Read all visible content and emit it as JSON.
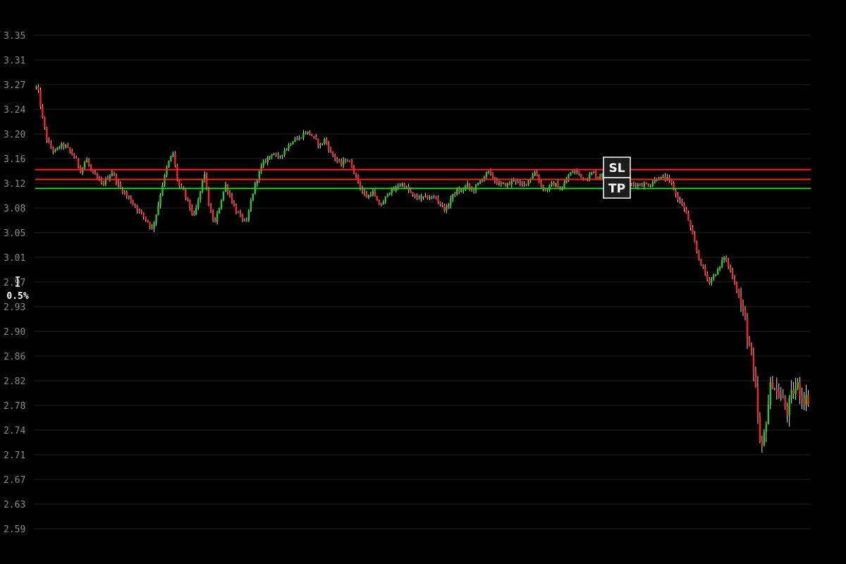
{
  "chart_data": {
    "type": "candlestick",
    "title": "",
    "xlabel": "",
    "ylabel": "",
    "ylim": [
      2.57,
      3.37
    ],
    "yticks": [
      "3.35",
      "3.31",
      "3.27",
      "3.24",
      "3.20",
      "3.16",
      "3.12",
      "3.08",
      "3.05",
      "3.01",
      "2.97",
      "2.93",
      "2.90",
      "2.86",
      "2.82",
      "2.78",
      "2.74",
      "2.71",
      "2.67",
      "2.63",
      "2.59"
    ],
    "price_path": [
      [
        0,
        3.27
      ],
      [
        1,
        3.26
      ],
      [
        2,
        3.23
      ],
      [
        3,
        3.21
      ],
      [
        4,
        3.19
      ],
      [
        5,
        3.18
      ],
      [
        7,
        3.17
      ],
      [
        9,
        3.18
      ],
      [
        11,
        3.18
      ],
      [
        13,
        3.17
      ],
      [
        15,
        3.16
      ],
      [
        17,
        3.14
      ],
      [
        19,
        3.16
      ],
      [
        21,
        3.14
      ],
      [
        23,
        3.13
      ],
      [
        25,
        3.12
      ],
      [
        27,
        3.13
      ],
      [
        29,
        3.14
      ],
      [
        31,
        3.12
      ],
      [
        33,
        3.11
      ],
      [
        35,
        3.1
      ],
      [
        37,
        3.09
      ],
      [
        39,
        3.08
      ],
      [
        41,
        3.07
      ],
      [
        43,
        3.06
      ],
      [
        44,
        3.05
      ],
      [
        46,
        3.08
      ],
      [
        48,
        3.12
      ],
      [
        50,
        3.15
      ],
      [
        52,
        3.17
      ],
      [
        54,
        3.12
      ],
      [
        56,
        3.11
      ],
      [
        58,
        3.09
      ],
      [
        60,
        3.07
      ],
      [
        62,
        3.1
      ],
      [
        64,
        3.14
      ],
      [
        66,
        3.08
      ],
      [
        68,
        3.06
      ],
      [
        70,
        3.09
      ],
      [
        72,
        3.12
      ],
      [
        74,
        3.1
      ],
      [
        76,
        3.08
      ],
      [
        78,
        3.07
      ],
      [
        80,
        3.06
      ],
      [
        82,
        3.1
      ],
      [
        84,
        3.13
      ],
      [
        86,
        3.15
      ],
      [
        88,
        3.16
      ],
      [
        90,
        3.17
      ],
      [
        92,
        3.16
      ],
      [
        94,
        3.17
      ],
      [
        96,
        3.18
      ],
      [
        98,
        3.19
      ],
      [
        100,
        3.19
      ],
      [
        102,
        3.2
      ],
      [
        104,
        3.2
      ],
      [
        106,
        3.19
      ],
      [
        108,
        3.18
      ],
      [
        110,
        3.19
      ],
      [
        112,
        3.17
      ],
      [
        114,
        3.16
      ],
      [
        116,
        3.15
      ],
      [
        118,
        3.16
      ],
      [
        120,
        3.15
      ],
      [
        122,
        3.13
      ],
      [
        124,
        3.11
      ],
      [
        126,
        3.1
      ],
      [
        128,
        3.11
      ],
      [
        130,
        3.09
      ],
      [
        132,
        3.09
      ],
      [
        134,
        3.11
      ],
      [
        136,
        3.11
      ],
      [
        138,
        3.12
      ],
      [
        140,
        3.12
      ],
      [
        142,
        3.11
      ],
      [
        144,
        3.1
      ],
      [
        146,
        3.1
      ],
      [
        148,
        3.1
      ],
      [
        150,
        3.1
      ],
      [
        152,
        3.1
      ],
      [
        154,
        3.09
      ],
      [
        156,
        3.08
      ],
      [
        158,
        3.1
      ],
      [
        160,
        3.11
      ],
      [
        162,
        3.11
      ],
      [
        164,
        3.12
      ],
      [
        166,
        3.11
      ],
      [
        168,
        3.12
      ],
      [
        170,
        3.13
      ],
      [
        172,
        3.14
      ],
      [
        174,
        3.13
      ],
      [
        176,
        3.12
      ],
      [
        178,
        3.12
      ],
      [
        180,
        3.12
      ],
      [
        182,
        3.13
      ],
      [
        184,
        3.12
      ],
      [
        186,
        3.12
      ],
      [
        188,
        3.13
      ],
      [
        190,
        3.14
      ],
      [
        192,
        3.12
      ],
      [
        194,
        3.11
      ],
      [
        196,
        3.12
      ],
      [
        198,
        3.12
      ],
      [
        200,
        3.11
      ],
      [
        202,
        3.13
      ],
      [
        204,
        3.14
      ],
      [
        206,
        3.14
      ],
      [
        208,
        3.13
      ],
      [
        210,
        3.13
      ],
      [
        212,
        3.14
      ],
      [
        214,
        3.13
      ],
      [
        216,
        3.14
      ],
      [
        218,
        3.13
      ],
      [
        220,
        3.13
      ],
      [
        222,
        3.12
      ],
      [
        224,
        3.12
      ],
      [
        226,
        3.12
      ],
      [
        228,
        3.12
      ],
      [
        230,
        3.12
      ],
      [
        232,
        3.12
      ],
      [
        234,
        3.12
      ],
      [
        236,
        3.13
      ],
      [
        238,
        3.13
      ],
      [
        240,
        3.13
      ],
      [
        242,
        3.12
      ],
      [
        244,
        3.1
      ],
      [
        246,
        3.09
      ],
      [
        248,
        3.07
      ],
      [
        250,
        3.04
      ],
      [
        252,
        3.01
      ],
      [
        254,
        2.99
      ],
      [
        256,
        2.97
      ],
      [
        258,
        2.98
      ],
      [
        260,
        2.99
      ],
      [
        262,
        3.01
      ],
      [
        264,
        2.99
      ],
      [
        266,
        2.97
      ],
      [
        268,
        2.94
      ],
      [
        270,
        2.91
      ],
      [
        272,
        2.86
      ],
      [
        274,
        2.8
      ],
      [
        276,
        2.7
      ],
      [
        278,
        2.76
      ],
      [
        280,
        2.82
      ],
      [
        282,
        2.8
      ],
      [
        284,
        2.79
      ],
      [
        286,
        2.77
      ],
      [
        288,
        2.8
      ],
      [
        290,
        2.81
      ],
      [
        292,
        2.79
      ],
      [
        294,
        2.79
      ]
    ],
    "levels": [
      {
        "name": "SL",
        "value": 3.143,
        "color": "#ff2222"
      },
      {
        "name": "TP",
        "value": 3.114,
        "color": "#22cc22"
      },
      {
        "name": "entry",
        "value": 3.128,
        "color": "#ff2222"
      }
    ],
    "bull_color": "#22cc22",
    "bear_color": "#ff2222",
    "wick_color": "#dddddd"
  },
  "tags": {
    "sl": "SL",
    "tp": "TP"
  },
  "scale_indicator": {
    "label": "0.5%"
  }
}
